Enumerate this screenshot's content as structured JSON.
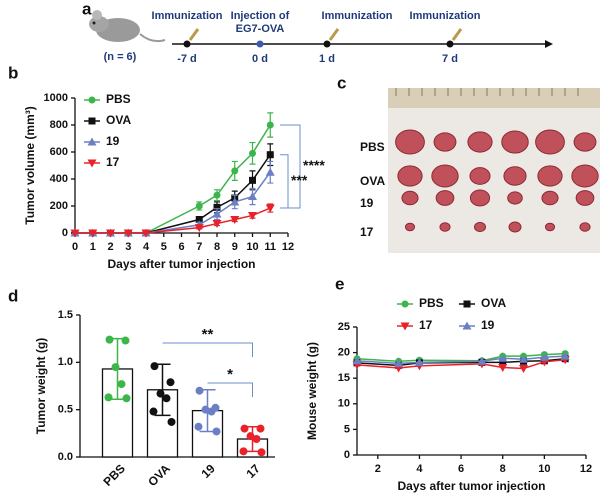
{
  "timeline": {
    "panel_label": "a",
    "sample": "(n = 6)",
    "events": [
      {
        "label": [
          "Immunization"
        ],
        "day": "-7 d"
      },
      {
        "label": [
          "Injection of",
          "EG7-OVA"
        ],
        "day": "0 d"
      },
      {
        "label": [
          "Immunization"
        ],
        "day": "1 d"
      },
      {
        "label": [
          "Immunization"
        ],
        "day": "7 d"
      }
    ]
  },
  "photo": {
    "panel_label": "c",
    "rows": [
      "PBS",
      "OVA",
      "19",
      "17"
    ]
  },
  "chart_data": [
    {
      "type": "line",
      "panel_label": "b",
      "x_label": "Days after tumor injection",
      "y_label": "Tumor volume (mm³)",
      "x": [
        0,
        1,
        2,
        3,
        4,
        7,
        8,
        9,
        10,
        11
      ],
      "xlim": [
        0,
        12
      ],
      "xticks": [
        0,
        1,
        2,
        3,
        4,
        5,
        6,
        7,
        8,
        9,
        10,
        11,
        12
      ],
      "ylim": [
        0,
        1000
      ],
      "yticks": [
        0,
        200,
        400,
        600,
        800,
        1000
      ],
      "legend": "upper left",
      "series": [
        {
          "name": "PBS",
          "color": "#3cb54a",
          "marker": "circle",
          "values": [
            0,
            0,
            0,
            0,
            0,
            200,
            280,
            460,
            590,
            800
          ],
          "errors": [
            0,
            0,
            0,
            0,
            0,
            30,
            40,
            70,
            80,
            90
          ]
        },
        {
          "name": "OVA",
          "color": "#111111",
          "marker": "square",
          "values": [
            0,
            0,
            0,
            0,
            0,
            100,
            190,
            260,
            390,
            580
          ],
          "errors": [
            0,
            0,
            0,
            0,
            0,
            20,
            40,
            50,
            70,
            80
          ]
        },
        {
          "name": "19",
          "color": "#6b7fc4",
          "marker": "triangle-up",
          "values": [
            0,
            0,
            0,
            0,
            0,
            60,
            140,
            230,
            270,
            450
          ],
          "errors": [
            0,
            0,
            0,
            0,
            0,
            20,
            40,
            50,
            60,
            80
          ]
        },
        {
          "name": "17",
          "color": "#e8222a",
          "marker": "triangle-down",
          "values": [
            0,
            0,
            0,
            0,
            0,
            40,
            70,
            100,
            130,
            185
          ],
          "errors": [
            0,
            0,
            0,
            0,
            0,
            10,
            15,
            15,
            20,
            30
          ]
        }
      ],
      "annotations": [
        "****",
        "***"
      ]
    },
    {
      "type": "bar",
      "panel_label": "d",
      "y_label": "Tumor weight (g)",
      "categories": [
        "PBS",
        "OVA",
        "19",
        "17"
      ],
      "values": [
        0.93,
        0.71,
        0.49,
        0.19
      ],
      "errors": [
        0.32,
        0.27,
        0.22,
        0.13
      ],
      "colors": [
        "#3cb54a",
        "#111111",
        "#6b7fc4",
        "#e8222a"
      ],
      "points": [
        [
          1.24,
          1.23,
          0.95,
          0.77,
          0.63,
          0.62
        ],
        [
          0.96,
          0.79,
          0.67,
          0.62,
          0.48,
          0.37
        ],
        [
          0.7,
          0.52,
          0.5,
          0.48,
          0.32,
          0.27
        ],
        [
          0.3,
          0.3,
          0.22,
          0.19,
          0.06,
          0.05
        ]
      ],
      "ylim": [
        0,
        1.5
      ],
      "yticks": [
        {
          "value": 0,
          "label": "0.0"
        },
        0.5,
        {
          "value": 1,
          "label": "1.0"
        },
        1.5
      ],
      "annotations": [
        "**",
        "*"
      ]
    },
    {
      "type": "line",
      "panel_label": "e",
      "x_label": "Days after tumor injection",
      "y_label": "Mouse weight (g)",
      "x": [
        1,
        3,
        4,
        7,
        8,
        9,
        10,
        11
      ],
      "xlim": [
        1,
        12
      ],
      "xticks": [
        2,
        4,
        6,
        8,
        10,
        12
      ],
      "ylim": [
        0,
        25
      ],
      "yticks": [
        0,
        5,
        10,
        15,
        20,
        25
      ],
      "legend": "top",
      "series": [
        {
          "name": "PBS",
          "color": "#3cb54a",
          "marker": "circle",
          "values": [
            18.8,
            18.3,
            18.5,
            18.4,
            19.3,
            19.3,
            19.6,
            19.8
          ]
        },
        {
          "name": "OVA",
          "color": "#111111",
          "marker": "square",
          "values": [
            18.0,
            17.5,
            18.0,
            18.1,
            18.1,
            18.3,
            18.4,
            18.8
          ]
        },
        {
          "name": "17",
          "color": "#e8222a",
          "marker": "triangle-down",
          "values": [
            17.6,
            17.0,
            17.4,
            17.8,
            17.1,
            16.9,
            18.2,
            18.6
          ]
        },
        {
          "name": "19",
          "color": "#6b7fc4",
          "marker": "triangle-up",
          "values": [
            18.4,
            17.9,
            18.1,
            18.3,
            18.9,
            18.7,
            19.1,
            19.3
          ]
        }
      ]
    }
  ]
}
